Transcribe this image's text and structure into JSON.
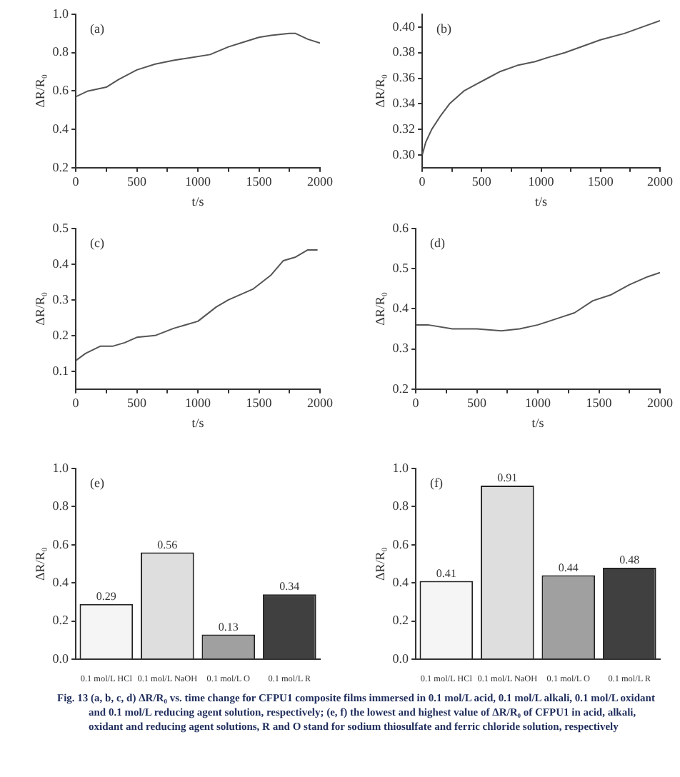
{
  "chart_data": [
    {
      "type": "line",
      "annotations": [
        "(a)"
      ],
      "xlabel": "t/s",
      "ylabel": "ΔR/R₀",
      "xlim": [
        0,
        2000
      ],
      "ylim": [
        0.2,
        1.0
      ],
      "xticks": [
        0,
        {
          "value": 250,
          "label": null
        },
        500,
        {
          "value": 750,
          "label": null
        },
        1000,
        {
          "value": 1250,
          "label": null
        },
        1500,
        {
          "value": 1750,
          "label": null
        },
        2000
      ],
      "yticks": [
        0.2,
        0.4,
        0.6,
        0.8,
        {
          "value": 1,
          "label": "1.0"
        }
      ],
      "legend": false,
      "marker": "none",
      "line_style": "solid",
      "series": [
        {
          "color": "#555555",
          "x": [
            0,
            100,
            250,
            350,
            500,
            650,
            800,
            950,
            1100,
            1250,
            1350,
            1500,
            1600,
            1750,
            1800,
            1900,
            2000
          ],
          "values": [
            0.57,
            0.6,
            0.62,
            0.66,
            0.71,
            0.74,
            0.76,
            0.775,
            0.79,
            0.83,
            0.85,
            0.88,
            0.89,
            0.9,
            0.9,
            0.87,
            0.85
          ]
        }
      ]
    },
    {
      "type": "line",
      "annotations": [
        "(b)"
      ],
      "xlabel": "t/s",
      "ylabel": "ΔR/R₀",
      "xlim": [
        0,
        2000
      ],
      "ylim": [
        0.29,
        0.41
      ],
      "xticks": [
        0,
        {
          "value": 250,
          "label": null
        },
        500,
        {
          "value": 750,
          "label": null
        },
        1000,
        {
          "value": 1250,
          "label": null
        },
        1500,
        {
          "value": 1750,
          "label": null
        },
        2000
      ],
      "yticks": [
        {
          "value": 0.3,
          "label": "0.30"
        },
        0.32,
        0.34,
        0.36,
        0.38,
        {
          "value": 0.4,
          "label": "0.40"
        }
      ],
      "legend": false,
      "marker": "none",
      "line_style": "solid",
      "series": [
        {
          "color": "#555555",
          "x": [
            0,
            30,
            80,
            150,
            230,
            350,
            450,
            550,
            650,
            800,
            950,
            1050,
            1200,
            1350,
            1500,
            1700,
            1850,
            2000
          ],
          "values": [
            0.3,
            0.31,
            0.32,
            0.33,
            0.34,
            0.35,
            0.355,
            0.36,
            0.365,
            0.37,
            0.373,
            0.376,
            0.38,
            0.385,
            0.39,
            0.395,
            0.4,
            0.405
          ]
        }
      ]
    },
    {
      "type": "line",
      "annotations": [
        "(c)"
      ],
      "xlabel": "t/s",
      "ylabel": "ΔR/R₀",
      "xlim": [
        0,
        2000
      ],
      "ylim": [
        0.05,
        0.5
      ],
      "xticks": [
        0,
        {
          "value": 250,
          "label": null
        },
        500,
        {
          "value": 750,
          "label": null
        },
        1000,
        {
          "value": 1250,
          "label": null
        },
        1500,
        {
          "value": 1750,
          "label": null
        },
        2000
      ],
      "yticks": [
        0.1,
        0.2,
        0.3,
        0.4,
        0.5
      ],
      "legend": false,
      "marker": "none",
      "line_style": "solid",
      "series": [
        {
          "color": "#555555",
          "x": [
            0,
            80,
            200,
            300,
            400,
            500,
            650,
            800,
            1000,
            1150,
            1250,
            1450,
            1600,
            1700,
            1800,
            1900,
            1980
          ],
          "values": [
            0.13,
            0.15,
            0.17,
            0.17,
            0.18,
            0.195,
            0.2,
            0.22,
            0.24,
            0.28,
            0.3,
            0.33,
            0.37,
            0.41,
            0.42,
            0.44,
            0.44
          ]
        }
      ]
    },
    {
      "type": "line",
      "annotations": [
        "(d)"
      ],
      "xlabel": "t/s",
      "ylabel": "ΔR/R₀",
      "xlim": [
        0,
        2000
      ],
      "ylim": [
        0.2,
        0.6
      ],
      "xticks": [
        0,
        {
          "value": 250,
          "label": null
        },
        500,
        {
          "value": 750,
          "label": null
        },
        1000,
        {
          "value": 1250,
          "label": null
        },
        1500,
        {
          "value": 1750,
          "label": null
        },
        2000
      ],
      "yticks": [
        0.2,
        0.3,
        0.4,
        0.5,
        0.6
      ],
      "legend": false,
      "marker": "none",
      "line_style": "solid",
      "series": [
        {
          "color": "#555555",
          "x": [
            0,
            100,
            300,
            500,
            700,
            850,
            1000,
            1200,
            1300,
            1450,
            1600,
            1750,
            1900,
            2000
          ],
          "values": [
            0.36,
            0.36,
            0.35,
            0.35,
            0.345,
            0.35,
            0.36,
            0.38,
            0.39,
            0.42,
            0.435,
            0.46,
            0.48,
            0.49
          ]
        }
      ]
    },
    {
      "type": "bar",
      "annotations": [
        "(e)"
      ],
      "ylabel": "ΔR/R₀",
      "categories": [
        "0.1 mol/L HCl",
        "0.1 mol/L NaOH",
        "0.1 mol/L O",
        "0.1 mol/L R"
      ],
      "values": [
        0.29,
        0.56,
        0.13,
        0.34
      ],
      "colors": [
        "#f5f5f5",
        "#dedede",
        "#a0a0a0",
        "#404040"
      ],
      "ylim": [
        0,
        1.0
      ],
      "yticks": [
        {
          "value": 0,
          "label": "0.0"
        },
        0.2,
        0.4,
        0.6,
        0.8,
        {
          "value": 1,
          "label": "1.0"
        }
      ],
      "legend": false,
      "data_labels": true
    },
    {
      "type": "bar",
      "annotations": [
        "(f)"
      ],
      "ylabel": "ΔR/R₀",
      "categories": [
        "0.1 mol/L HCl",
        "0.1 mol/L NaOH",
        "0.1 mol/L O",
        "0.1 mol/L R"
      ],
      "values": [
        0.41,
        0.91,
        0.44,
        0.48
      ],
      "colors": [
        "#f5f5f5",
        "#dedede",
        "#a0a0a0",
        "#404040"
      ],
      "ylim": [
        0,
        1.0
      ],
      "yticks": [
        {
          "value": 0,
          "label": "0.0"
        },
        0.2,
        0.4,
        0.6,
        0.8,
        {
          "value": 1,
          "label": "1.0"
        }
      ],
      "legend": false,
      "data_labels": true
    },
    {
      "type": "other",
      "annotations": [
        "Fig. 13 (a, b, c, d) ΔR/R₀ vs. time change for CFPU1 composite films immersed in 0.1 mol/L acid, 0.1 mol/L alkali, 0.1 mol/L oxidant and 0.1 mol/L reducing agent solution, respectively; (e, f) the lowest and highest value of ΔR/R₀ of CFPU1 in acid, alkali, oxidant and reducing agent solutions, R and O stand for sodium thiosulfate and ferric chloride solution, respectively"
      ]
    }
  ]
}
